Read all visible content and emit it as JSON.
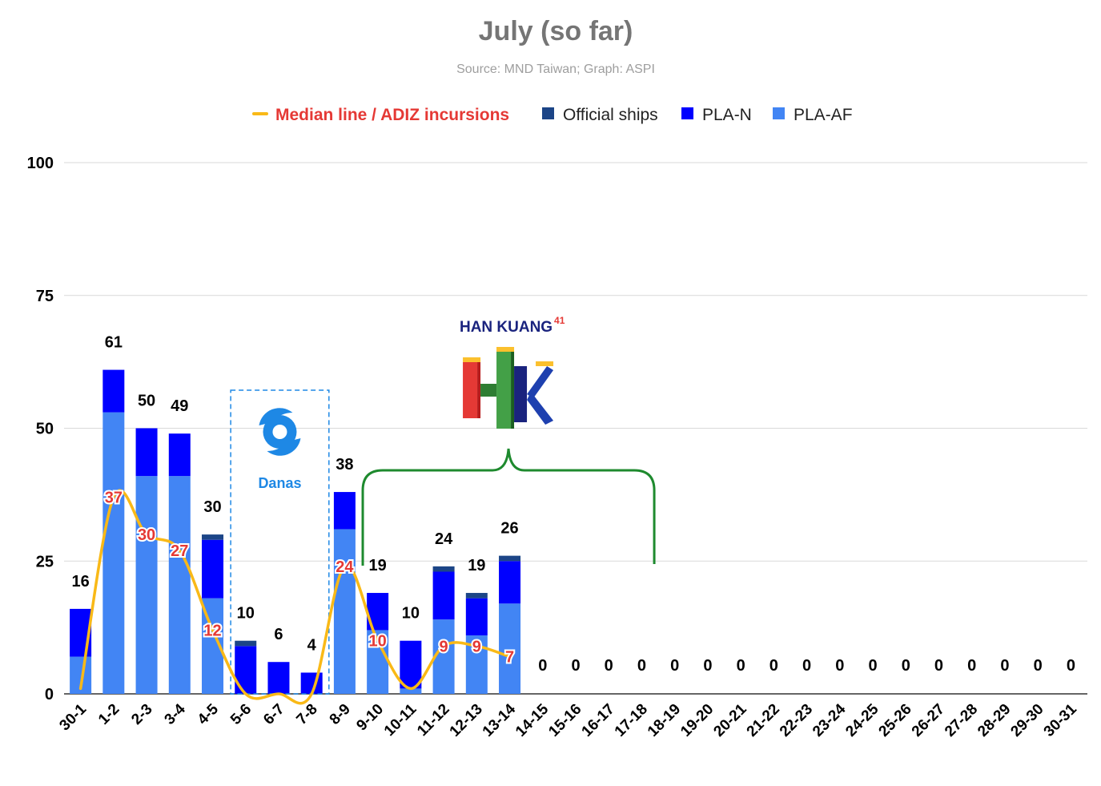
{
  "chart_data": {
    "type": "bar",
    "stacked": true,
    "title": "July (so far)",
    "subtitle": "Source: MND Taiwan; Graph: ASPI",
    "legend_position": "top",
    "ylim": [
      0,
      100
    ],
    "yticks": [
      0,
      25,
      50,
      75,
      100
    ],
    "grid": true,
    "categories": [
      "30-1",
      "1-2",
      "2-3",
      "3-4",
      "4-5",
      "5-6",
      "6-7",
      "7-8",
      "8-9",
      "9-10",
      "10-11",
      "11-12",
      "12-13",
      "13-14",
      "14-15",
      "15-16",
      "16-17",
      "17-18",
      "18-19",
      "19-20",
      "20-21",
      "21-22",
      "22-23",
      "23-24",
      "24-25",
      "25-26",
      "26-27",
      "27-28",
      "28-29",
      "29-30",
      "30-31"
    ],
    "series": [
      {
        "name": "PLA-AF",
        "color": "#4285f4",
        "values": [
          7,
          53,
          41,
          41,
          18,
          0,
          0,
          0,
          31,
          12,
          1,
          14,
          11,
          17,
          0,
          0,
          0,
          0,
          0,
          0,
          0,
          0,
          0,
          0,
          0,
          0,
          0,
          0,
          0,
          0,
          0
        ]
      },
      {
        "name": "PLA-N",
        "color": "#0000ff",
        "values": [
          9,
          8,
          9,
          8,
          11,
          9,
          6,
          4,
          7,
          7,
          9,
          9,
          7,
          8,
          0,
          0,
          0,
          0,
          0,
          0,
          0,
          0,
          0,
          0,
          0,
          0,
          0,
          0,
          0,
          0,
          0
        ]
      },
      {
        "name": "Official ships",
        "color": "#1c4587",
        "values": [
          0,
          0,
          0,
          0,
          1,
          1,
          0,
          0,
          0,
          0,
          0,
          1,
          1,
          1,
          0,
          0,
          0,
          0,
          0,
          0,
          0,
          0,
          0,
          0,
          0,
          0,
          0,
          0,
          0,
          0,
          0
        ]
      }
    ],
    "totals": [
      16,
      61,
      50,
      49,
      30,
      10,
      6,
      4,
      38,
      19,
      10,
      24,
      19,
      26,
      0,
      0,
      0,
      0,
      0,
      0,
      0,
      0,
      0,
      0,
      0,
      0,
      0,
      0,
      0,
      0,
      0
    ],
    "median_line": {
      "name": "Median line / ADIZ incursions",
      "color": "#f9b917",
      "values": [
        1,
        37,
        30,
        27,
        12,
        0,
        0,
        0,
        24,
        10,
        1,
        9,
        9,
        7
      ]
    },
    "median_labels": [
      {
        "index": 1,
        "text": "37"
      },
      {
        "index": 2,
        "text": "30"
      },
      {
        "index": 3,
        "text": "27"
      },
      {
        "index": 4,
        "text": "12"
      },
      {
        "index": 8,
        "text": "24"
      },
      {
        "index": 9,
        "text": "10"
      },
      {
        "index": 11,
        "text": "9"
      },
      {
        "index": 12,
        "text": "9"
      },
      {
        "index": 13,
        "text": "7"
      }
    ],
    "annotations": {
      "typhoon": {
        "label": "Danas",
        "icon": "typhoon-icon",
        "color": "#1e88e5",
        "range": [
          "5-6",
          "7-8"
        ]
      },
      "exercise": {
        "label": "HAN KUANG",
        "superscript": "41",
        "logo_letters": "HK",
        "icon": "han-kuang-logo",
        "bracket_color": "#1e8a2e",
        "range": [
          "9-10",
          "17-18"
        ]
      }
    }
  }
}
